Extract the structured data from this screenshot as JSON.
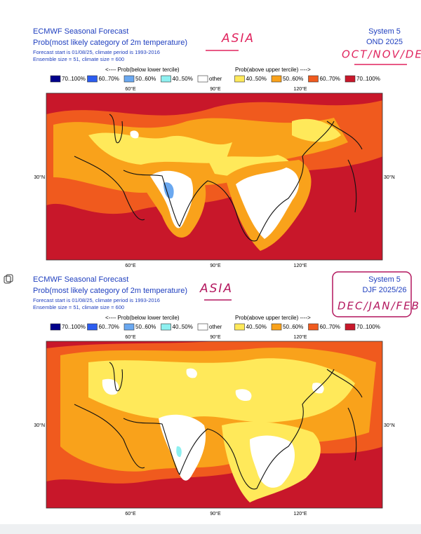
{
  "panels": [
    {
      "title": "ECMWF Seasonal Forecast",
      "subtitle": "Prob(most likely category of 2m temperature)",
      "forecast_info": "Forecast start is 01/08/25, climate period is 1993-2016",
      "ensemble_info": "Ensemble size = 51, climate size = 600",
      "system": "System 5",
      "period": "OND 2025",
      "note_region": "ASIA",
      "note_months": "OCT/NOV/DEC",
      "legend_below": "<---- Prob(below lower tercile)",
      "legend_above": "Prob(above upper tercile) ---->",
      "legend": [
        {
          "label": "70..100%",
          "color": "#00008b"
        },
        {
          "label": "60..70%",
          "color": "#2b5cf0"
        },
        {
          "label": "50..60%",
          "color": "#6aa8f0"
        },
        {
          "label": "40..50%",
          "color": "#8ef0f0"
        },
        {
          "label": "other",
          "color": "#ffffff"
        },
        {
          "label": "40..50%",
          "color": "#ffe95a"
        },
        {
          "label": "50..60%",
          "color": "#f9a21b"
        },
        {
          "label": "60..70%",
          "color": "#f05a1e"
        },
        {
          "label": "70..100%",
          "color": "#c8172a"
        }
      ],
      "lon_labels_top": [
        "60°E",
        "90°E",
        "120°E"
      ],
      "lon_labels_bottom": [
        "60°E",
        "90°E",
        "120°E"
      ],
      "lat_labels": [
        "30°N",
        "30°N"
      ]
    },
    {
      "title": "ECMWF Seasonal Forecast",
      "subtitle": "Prob(most likely category of 2m temperature)",
      "forecast_info": "Forecast start is 01/08/25, climate period is 1993-2016",
      "ensemble_info": "Ensemble size = 51, climate size = 600",
      "system": "System 5",
      "period": "DJF 2025/26",
      "note_region": "ASIA",
      "note_months": "DEC/JAN/FEB",
      "legend_below": "<---- Prob(below lower tercile)",
      "legend_above": "Prob(above upper tercile) ---->",
      "legend": [
        {
          "label": "70..100%",
          "color": "#00008b"
        },
        {
          "label": "60..70%",
          "color": "#2b5cf0"
        },
        {
          "label": "50..60%",
          "color": "#6aa8f0"
        },
        {
          "label": "40..50%",
          "color": "#8ef0f0"
        },
        {
          "label": "other",
          "color": "#ffffff"
        },
        {
          "label": "40..50%",
          "color": "#ffe95a"
        },
        {
          "label": "50..60%",
          "color": "#f9a21b"
        },
        {
          "label": "60..70%",
          "color": "#f05a1e"
        },
        {
          "label": "70..100%",
          "color": "#c8172a"
        }
      ],
      "lon_labels_top": [
        "60°E",
        "90°E",
        "120°E"
      ],
      "lon_labels_bottom": [
        "60°E",
        "90°E",
        "120°E"
      ],
      "lat_labels": [
        "30°N",
        "30°N"
      ]
    }
  ]
}
